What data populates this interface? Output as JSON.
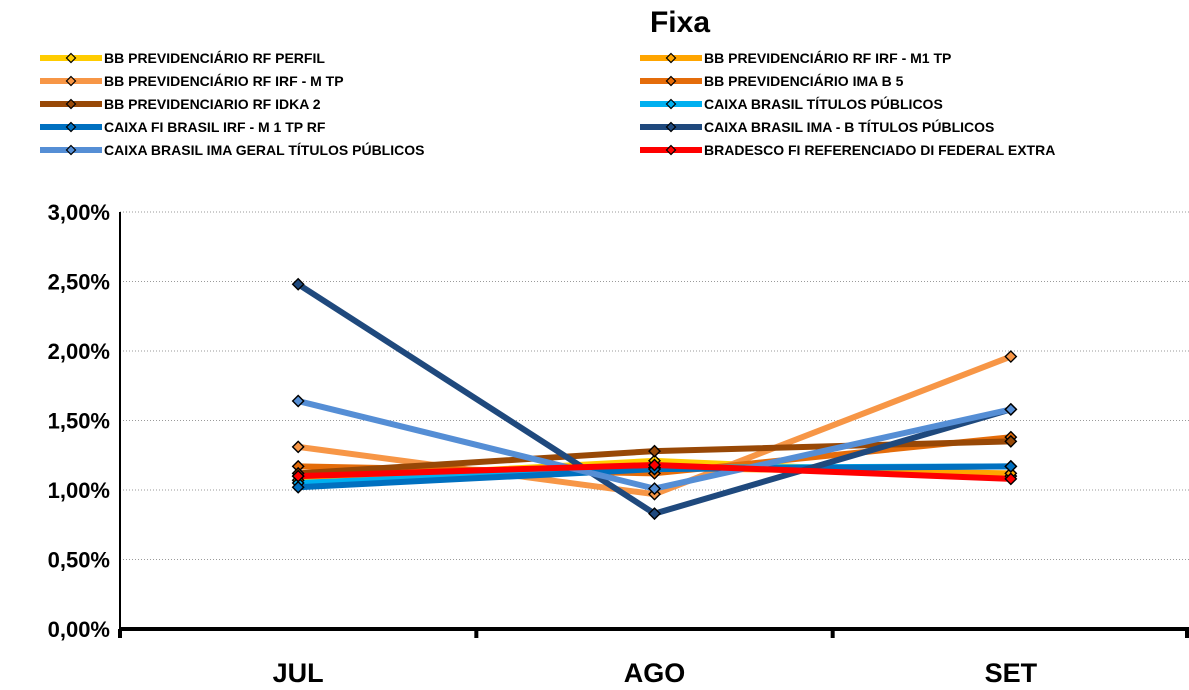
{
  "chart_data": {
    "type": "line",
    "title": "Fixa",
    "categories": [
      "JUL",
      "AGO",
      "SET"
    ],
    "y_ticks": [
      "0,00%",
      "0,50%",
      "1,00%",
      "1,50%",
      "2,00%",
      "2,50%",
      "3,00%"
    ],
    "ylim": [
      0,
      3
    ],
    "y_unit": "%",
    "grid": "horizontal dotted",
    "legend_position": "top",
    "series": [
      {
        "name": "BB PREVIDENCIÁRIO RF PERFIL",
        "color": "#FFCC00",
        "values": [
          1.07,
          1.21,
          1.1
        ]
      },
      {
        "name": "BB PREVIDENCIÁRIO RF IRF - M1 TP",
        "color": "#FFA500",
        "values": [
          1.1,
          1.16,
          1.12
        ]
      },
      {
        "name": "BB PREVIDENCIÁRIO RF IRF - M TP",
        "color": "#F79646",
        "values": [
          1.31,
          0.97,
          1.96
        ]
      },
      {
        "name": "BB PREVIDENCIÁRIO IMA B 5",
        "color": "#E46C0A",
        "values": [
          1.17,
          1.12,
          1.38
        ]
      },
      {
        "name": "BB PREVIDENCIARIO RF IDKA 2",
        "color": "#984806",
        "values": [
          1.12,
          1.28,
          1.35
        ]
      },
      {
        "name": "CAIXA BRASIL TÍTULOS PÚBLICOS",
        "color": "#00B0F0",
        "values": [
          1.05,
          1.16,
          1.17
        ]
      },
      {
        "name": "CAIXA FI BRASIL IRF - M 1 TP RF",
        "color": "#0070C0",
        "values": [
          1.02,
          1.15,
          1.17
        ]
      },
      {
        "name": "CAIXA BRASIL IMA - B TÍTULOS PÚBLICOS",
        "color": "#1F497D",
        "values": [
          2.48,
          0.83,
          1.58
        ]
      },
      {
        "name": "CAIXA BRASIL IMA GERAL TÍTULOS PÚBLICOS",
        "color": "#558ED5",
        "values": [
          1.64,
          1.01,
          1.58
        ]
      },
      {
        "name": "BRADESCO FI REFERENCIADO DI FEDERAL EXTRA",
        "color": "#FF0000",
        "values": [
          1.1,
          1.18,
          1.08
        ]
      }
    ]
  }
}
